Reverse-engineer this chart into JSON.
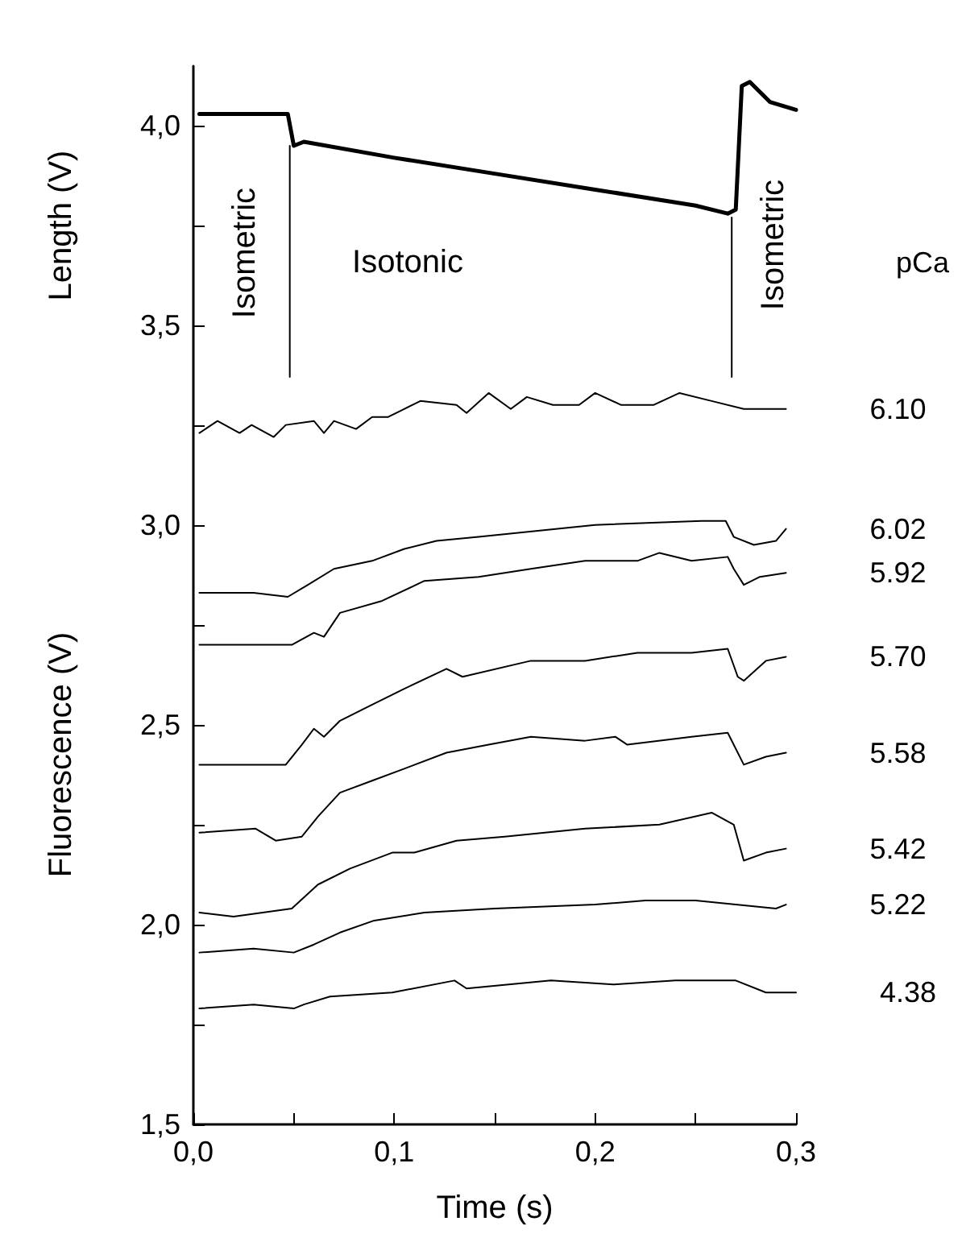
{
  "chart_data": [
    {
      "type": "line",
      "ylabel": "Length (V)",
      "legend_title": "pCa",
      "xlim": [
        0,
        0.3
      ],
      "ylim": [
        3.35,
        4.15
      ],
      "yticks": [
        {
          "value": 3.5,
          "label": "3,5"
        },
        {
          "value": 3.75,
          "label": null
        },
        {
          "value": 4.0,
          "label": "4,0"
        }
      ],
      "tick_labels": "y",
      "grid": false,
      "legend": false,
      "marker": "none",
      "line_style": "solid",
      "annotations": [
        "Isometric",
        "Isotonic",
        "Isometric"
      ],
      "series": [
        {
          "color": "#000000",
          "x": [
            0.003,
            0.02,
            0.04,
            0.047,
            0.05,
            0.055,
            0.1,
            0.15,
            0.2,
            0.25,
            0.266,
            0.27,
            0.273,
            0.277,
            0.287,
            0.3
          ],
          "values": [
            4.03,
            4.03,
            4.03,
            4.03,
            3.95,
            3.96,
            3.92,
            3.88,
            3.84,
            3.8,
            3.78,
            3.79,
            4.1,
            4.11,
            4.06,
            4.04
          ]
        },
        {
          "color": "#000000",
          "x": [
            0.048,
            0.048
          ],
          "values": [
            3.37,
            3.95
          ]
        },
        {
          "color": "#000000",
          "x": [
            0.268,
            0.268
          ],
          "values": [
            3.37,
            3.77
          ]
        }
      ]
    },
    {
      "type": "line",
      "xlabel": "Time (s)",
      "ylabel": "Fluorescence (V)",
      "xlim": [
        0,
        0.3
      ],
      "ylim": [
        1.5,
        3.35
      ],
      "xticks": [
        {
          "value": 0,
          "label": "0,0"
        },
        {
          "value": 0.05,
          "label": null
        },
        {
          "value": 0.1,
          "label": "0,1"
        },
        {
          "value": 0.15,
          "label": null
        },
        {
          "value": 0.2,
          "label": "0,2"
        },
        {
          "value": 0.25,
          "label": null
        },
        {
          "value": 0.3,
          "label": "0,3"
        }
      ],
      "yticks": [
        {
          "value": 1.5,
          "label": "1,5"
        },
        {
          "value": 1.75,
          "label": null
        },
        {
          "value": 2.0,
          "label": "2,0"
        },
        {
          "value": 2.25,
          "label": null
        },
        {
          "value": 2.5,
          "label": "2,5"
        },
        {
          "value": 2.75,
          "label": null
        },
        {
          "value": 3.0,
          "label": "3,0"
        },
        {
          "value": 3.25,
          "label": null
        }
      ],
      "grid": false,
      "legend": false,
      "marker": "none",
      "line_style": "solid",
      "series": [
        {
          "name": "6.10",
          "color": "#000000",
          "x": [
            0.003,
            0.012,
            0.023,
            0.029,
            0.04,
            0.046,
            0.06,
            0.065,
            0.07,
            0.081,
            0.089,
            0.097,
            0.113,
            0.131,
            0.136,
            0.147,
            0.158,
            0.166,
            0.179,
            0.192,
            0.2,
            0.213,
            0.229,
            0.242,
            0.258,
            0.274,
            0.282,
            0.295
          ],
          "values": [
            3.23,
            3.26,
            3.23,
            3.25,
            3.22,
            3.25,
            3.26,
            3.23,
            3.26,
            3.24,
            3.27,
            3.27,
            3.31,
            3.3,
            3.28,
            3.33,
            3.29,
            3.32,
            3.3,
            3.3,
            3.33,
            3.3,
            3.3,
            3.33,
            3.31,
            3.29,
            3.29,
            3.29
          ]
        },
        {
          "name": "6.02",
          "color": "#000000",
          "x": [
            0.003,
            0.03,
            0.047,
            0.057,
            0.07,
            0.089,
            0.105,
            0.121,
            0.142,
            0.2,
            0.253,
            0.265,
            0.269,
            0.279,
            0.29,
            0.295
          ],
          "values": [
            2.83,
            2.83,
            2.82,
            2.85,
            2.89,
            2.91,
            2.94,
            2.96,
            2.97,
            3.0,
            3.01,
            3.01,
            2.97,
            2.95,
            2.96,
            2.99
          ]
        },
        {
          "name": "5.92",
          "color": "#000000",
          "x": [
            0.003,
            0.049,
            0.06,
            0.065,
            0.073,
            0.094,
            0.115,
            0.142,
            0.168,
            0.195,
            0.221,
            0.232,
            0.248,
            0.266,
            0.269,
            0.274,
            0.282,
            0.295
          ],
          "values": [
            2.7,
            2.7,
            2.73,
            2.72,
            2.78,
            2.81,
            2.86,
            2.87,
            2.89,
            2.91,
            2.91,
            2.93,
            2.91,
            2.92,
            2.89,
            2.85,
            2.87,
            2.88
          ]
        },
        {
          "name": "5.70",
          "color": "#000000",
          "x": [
            0.003,
            0.046,
            0.054,
            0.06,
            0.065,
            0.073,
            0.089,
            0.105,
            0.126,
            0.134,
            0.168,
            0.195,
            0.221,
            0.248,
            0.266,
            0.271,
            0.274,
            0.285,
            0.295
          ],
          "values": [
            2.4,
            2.4,
            2.45,
            2.49,
            2.47,
            2.51,
            2.55,
            2.59,
            2.64,
            2.62,
            2.66,
            2.66,
            2.68,
            2.68,
            2.69,
            2.62,
            2.61,
            2.66,
            2.67
          ]
        },
        {
          "name": "5.58",
          "color": "#000000",
          "x": [
            0.003,
            0.031,
            0.041,
            0.054,
            0.062,
            0.073,
            0.089,
            0.105,
            0.126,
            0.147,
            0.168,
            0.195,
            0.21,
            0.216,
            0.248,
            0.266,
            0.274,
            0.285,
            0.295
          ],
          "values": [
            2.23,
            2.24,
            2.21,
            2.22,
            2.27,
            2.33,
            2.36,
            2.39,
            2.43,
            2.45,
            2.47,
            2.46,
            2.47,
            2.45,
            2.47,
            2.48,
            2.4,
            2.42,
            2.43
          ]
        },
        {
          "name": "5.42",
          "color": "#000000",
          "x": [
            0.003,
            0.02,
            0.049,
            0.062,
            0.078,
            0.099,
            0.11,
            0.131,
            0.155,
            0.195,
            0.232,
            0.258,
            0.269,
            0.274,
            0.285,
            0.295
          ],
          "values": [
            2.03,
            2.02,
            2.04,
            2.1,
            2.14,
            2.18,
            2.18,
            2.21,
            2.22,
            2.24,
            2.25,
            2.28,
            2.25,
            2.16,
            2.18,
            2.19
          ]
        },
        {
          "name": "5.22",
          "color": "#000000",
          "x": [
            0.003,
            0.03,
            0.05,
            0.06,
            0.073,
            0.09,
            0.115,
            0.15,
            0.2,
            0.225,
            0.25,
            0.27,
            0.29,
            0.295
          ],
          "values": [
            1.93,
            1.94,
            1.93,
            1.95,
            1.98,
            2.01,
            2.03,
            2.04,
            2.05,
            2.06,
            2.06,
            2.05,
            2.04,
            2.05
          ]
        },
        {
          "name": "4.38",
          "color": "#000000",
          "x": [
            0.003,
            0.03,
            0.05,
            0.055,
            0.068,
            0.099,
            0.13,
            0.136,
            0.178,
            0.209,
            0.24,
            0.27,
            0.285,
            0.3
          ],
          "values": [
            1.79,
            1.8,
            1.79,
            1.8,
            1.82,
            1.83,
            1.86,
            1.84,
            1.86,
            1.85,
            1.86,
            1.86,
            1.83,
            1.83
          ]
        }
      ]
    }
  ]
}
